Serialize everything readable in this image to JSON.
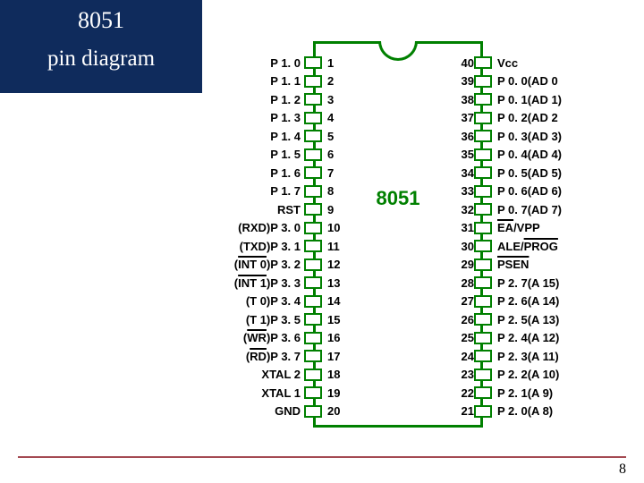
{
  "title": {
    "line1": "8051",
    "line2": "pin diagram"
  },
  "chip_name": "8051",
  "page_number": "8",
  "colors": {
    "title_bg": "#0f2b5c",
    "title_text": "#ffffff",
    "chip_border": "#008000",
    "chip_text": "#008000",
    "label_text": "#000000",
    "rule": "#a44a52",
    "background": "#ffffff"
  },
  "left_pins": [
    {
      "num": "1",
      "label": "P 1. 0"
    },
    {
      "num": "2",
      "label": "P 1. 1"
    },
    {
      "num": "3",
      "label": "P 1. 2"
    },
    {
      "num": "4",
      "label": "P 1. 3"
    },
    {
      "num": "5",
      "label": "P 1. 4"
    },
    {
      "num": "6",
      "label": "P 1. 5"
    },
    {
      "num": "7",
      "label": "P 1. 6"
    },
    {
      "num": "8",
      "label": "P 1. 7"
    },
    {
      "num": "9",
      "label": "RST"
    },
    {
      "num": "10",
      "label": "(RXD)P 3. 0"
    },
    {
      "num": "11",
      "label": "(TXD)P 3. 1"
    },
    {
      "num": "12",
      "label_html": "(<span class='overline'>INT 0</span>)P 3. 2"
    },
    {
      "num": "13",
      "label_html": "(<span class='overline'>INT 1</span>)P 3. 3"
    },
    {
      "num": "14",
      "label": "(T 0)P 3. 4"
    },
    {
      "num": "15",
      "label": "(T 1)P 3. 5"
    },
    {
      "num": "16",
      "label_html": "(<span class='overline'>WR</span>)P 3. 6"
    },
    {
      "num": "17",
      "label_html": "(<span class='overline'>RD</span>)P 3. 7"
    },
    {
      "num": "18",
      "label": "XTAL 2"
    },
    {
      "num": "19",
      "label": "XTAL 1"
    },
    {
      "num": "20",
      "label": "GND"
    }
  ],
  "right_pins": [
    {
      "num": "40",
      "label": "Vcc"
    },
    {
      "num": "39",
      "label": "P 0. 0(AD 0"
    },
    {
      "num": "38",
      "label": "P 0. 1(AD 1)"
    },
    {
      "num": "37",
      "label": "P 0. 2(AD 2"
    },
    {
      "num": "36",
      "label": "P 0. 3(AD 3)"
    },
    {
      "num": "35",
      "label": "P 0. 4(AD 4)"
    },
    {
      "num": "34",
      "label": "P 0. 5(AD 5)"
    },
    {
      "num": "33",
      "label": "P 0. 6(AD 6)"
    },
    {
      "num": "32",
      "label": "P 0. 7(AD 7)"
    },
    {
      "num": "31",
      "label_html": "<span class='overline'>EA</span>/VPP"
    },
    {
      "num": "30",
      "label_html": "ALE/<span class='overline'>PROG</span>"
    },
    {
      "num": "29",
      "label_html": "<span class='overline'>PSEN</span>"
    },
    {
      "num": "28",
      "label": "P 2. 7(A 15)"
    },
    {
      "num": "27",
      "label": "P 2. 6(A 14)"
    },
    {
      "num": "26",
      "label": "P 2. 5(A 13)"
    },
    {
      "num": "25",
      "label": "P 2. 4(A 12)"
    },
    {
      "num": "24",
      "label": "P 2. 3(A 11)"
    },
    {
      "num": "23",
      "label": "P 2. 2(A 10)"
    },
    {
      "num": "22",
      "label": "P 2. 1(A 9)"
    },
    {
      "num": "21",
      "label": "P 2. 0(A 8)"
    }
  ]
}
